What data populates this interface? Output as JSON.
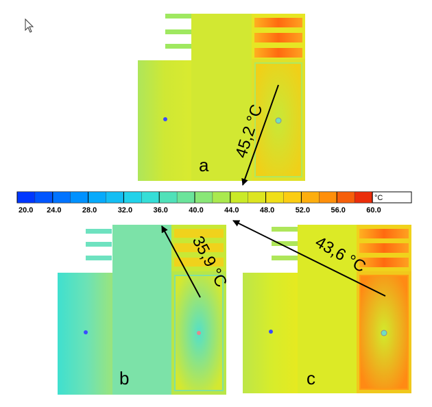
{
  "panels": [
    {
      "id": "a",
      "label": "a",
      "annotation": "45,2 °C"
    },
    {
      "id": "b",
      "label": "b",
      "annotation": "35,9 °C"
    },
    {
      "id": "c",
      "label": "c",
      "annotation": "43,6 °C"
    }
  ],
  "colorbar": {
    "unit": "°C",
    "min": 20,
    "max": 60,
    "ticks": [
      "20.0",
      "24.0",
      "28.0",
      "32.0",
      "36.0",
      "40.0",
      "44.0",
      "48.0",
      "52.0",
      "56.0",
      "60.0"
    ]
  },
  "colors": {
    "panel_a_base": "#cfe834",
    "panel_b_base": "#5fe0c0",
    "panel_c_base": "#d6ec2c",
    "hot": "#ff6a10",
    "probe": "#3a4cff"
  },
  "cursor_icon": "mouse-pointer-icon"
}
